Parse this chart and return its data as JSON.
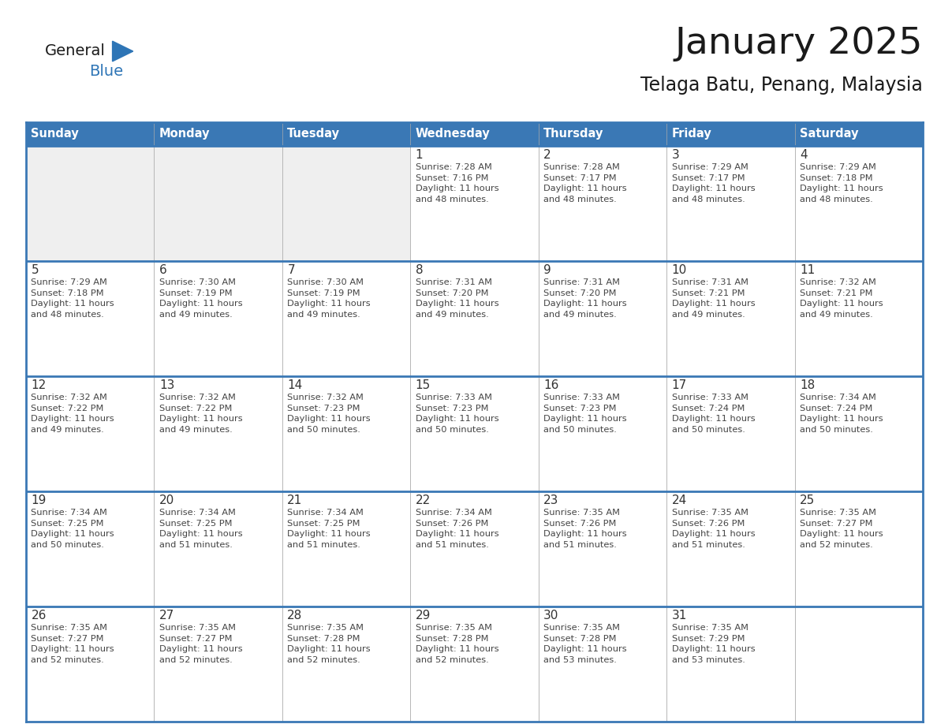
{
  "title": "January 2025",
  "subtitle": "Telaga Batu, Penang, Malaysia",
  "days_of_week": [
    "Sunday",
    "Monday",
    "Tuesday",
    "Wednesday",
    "Thursday",
    "Friday",
    "Saturday"
  ],
  "header_bg": "#3A78B5",
  "header_text": "#FFFFFF",
  "cell_bg_white": "#FFFFFF",
  "cell_bg_gray": "#EFEFEF",
  "border_color": "#3A78B5",
  "row_divider_color": "#3A78B5",
  "day_number_color": "#333333",
  "text_color": "#444444",
  "logo_general_color": "#1a1a1a",
  "logo_blue_color": "#2E75B6",
  "title_color": "#1a1a1a",
  "subtitle_color": "#1a1a1a",
  "calendar_data": [
    [
      {
        "day": null,
        "info": null
      },
      {
        "day": null,
        "info": null
      },
      {
        "day": null,
        "info": null
      },
      {
        "day": 1,
        "info": "Sunrise: 7:28 AM\nSunset: 7:16 PM\nDaylight: 11 hours\nand 48 minutes."
      },
      {
        "day": 2,
        "info": "Sunrise: 7:28 AM\nSunset: 7:17 PM\nDaylight: 11 hours\nand 48 minutes."
      },
      {
        "day": 3,
        "info": "Sunrise: 7:29 AM\nSunset: 7:17 PM\nDaylight: 11 hours\nand 48 minutes."
      },
      {
        "day": 4,
        "info": "Sunrise: 7:29 AM\nSunset: 7:18 PM\nDaylight: 11 hours\nand 48 minutes."
      }
    ],
    [
      {
        "day": 5,
        "info": "Sunrise: 7:29 AM\nSunset: 7:18 PM\nDaylight: 11 hours\nand 48 minutes."
      },
      {
        "day": 6,
        "info": "Sunrise: 7:30 AM\nSunset: 7:19 PM\nDaylight: 11 hours\nand 49 minutes."
      },
      {
        "day": 7,
        "info": "Sunrise: 7:30 AM\nSunset: 7:19 PM\nDaylight: 11 hours\nand 49 minutes."
      },
      {
        "day": 8,
        "info": "Sunrise: 7:31 AM\nSunset: 7:20 PM\nDaylight: 11 hours\nand 49 minutes."
      },
      {
        "day": 9,
        "info": "Sunrise: 7:31 AM\nSunset: 7:20 PM\nDaylight: 11 hours\nand 49 minutes."
      },
      {
        "day": 10,
        "info": "Sunrise: 7:31 AM\nSunset: 7:21 PM\nDaylight: 11 hours\nand 49 minutes."
      },
      {
        "day": 11,
        "info": "Sunrise: 7:32 AM\nSunset: 7:21 PM\nDaylight: 11 hours\nand 49 minutes."
      }
    ],
    [
      {
        "day": 12,
        "info": "Sunrise: 7:32 AM\nSunset: 7:22 PM\nDaylight: 11 hours\nand 49 minutes."
      },
      {
        "day": 13,
        "info": "Sunrise: 7:32 AM\nSunset: 7:22 PM\nDaylight: 11 hours\nand 49 minutes."
      },
      {
        "day": 14,
        "info": "Sunrise: 7:32 AM\nSunset: 7:23 PM\nDaylight: 11 hours\nand 50 minutes."
      },
      {
        "day": 15,
        "info": "Sunrise: 7:33 AM\nSunset: 7:23 PM\nDaylight: 11 hours\nand 50 minutes."
      },
      {
        "day": 16,
        "info": "Sunrise: 7:33 AM\nSunset: 7:23 PM\nDaylight: 11 hours\nand 50 minutes."
      },
      {
        "day": 17,
        "info": "Sunrise: 7:33 AM\nSunset: 7:24 PM\nDaylight: 11 hours\nand 50 minutes."
      },
      {
        "day": 18,
        "info": "Sunrise: 7:34 AM\nSunset: 7:24 PM\nDaylight: 11 hours\nand 50 minutes."
      }
    ],
    [
      {
        "day": 19,
        "info": "Sunrise: 7:34 AM\nSunset: 7:25 PM\nDaylight: 11 hours\nand 50 minutes."
      },
      {
        "day": 20,
        "info": "Sunrise: 7:34 AM\nSunset: 7:25 PM\nDaylight: 11 hours\nand 51 minutes."
      },
      {
        "day": 21,
        "info": "Sunrise: 7:34 AM\nSunset: 7:25 PM\nDaylight: 11 hours\nand 51 minutes."
      },
      {
        "day": 22,
        "info": "Sunrise: 7:34 AM\nSunset: 7:26 PM\nDaylight: 11 hours\nand 51 minutes."
      },
      {
        "day": 23,
        "info": "Sunrise: 7:35 AM\nSunset: 7:26 PM\nDaylight: 11 hours\nand 51 minutes."
      },
      {
        "day": 24,
        "info": "Sunrise: 7:35 AM\nSunset: 7:26 PM\nDaylight: 11 hours\nand 51 minutes."
      },
      {
        "day": 25,
        "info": "Sunrise: 7:35 AM\nSunset: 7:27 PM\nDaylight: 11 hours\nand 52 minutes."
      }
    ],
    [
      {
        "day": 26,
        "info": "Sunrise: 7:35 AM\nSunset: 7:27 PM\nDaylight: 11 hours\nand 52 minutes."
      },
      {
        "day": 27,
        "info": "Sunrise: 7:35 AM\nSunset: 7:27 PM\nDaylight: 11 hours\nand 52 minutes."
      },
      {
        "day": 28,
        "info": "Sunrise: 7:35 AM\nSunset: 7:28 PM\nDaylight: 11 hours\nand 52 minutes."
      },
      {
        "day": 29,
        "info": "Sunrise: 7:35 AM\nSunset: 7:28 PM\nDaylight: 11 hours\nand 52 minutes."
      },
      {
        "day": 30,
        "info": "Sunrise: 7:35 AM\nSunset: 7:28 PM\nDaylight: 11 hours\nand 53 minutes."
      },
      {
        "day": 31,
        "info": "Sunrise: 7:35 AM\nSunset: 7:29 PM\nDaylight: 11 hours\nand 53 minutes."
      },
      {
        "day": null,
        "info": null
      }
    ]
  ],
  "fig_width": 11.88,
  "fig_height": 9.18,
  "dpi": 100
}
